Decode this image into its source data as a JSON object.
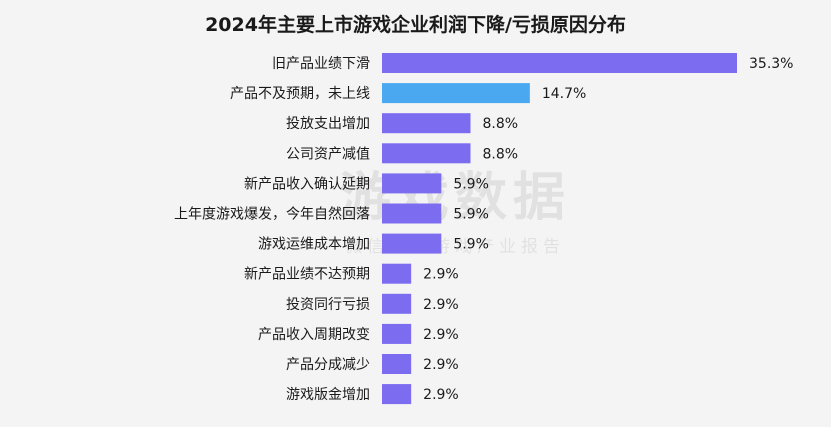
{
  "chart_data": {
    "type": "bar",
    "orientation": "horizontal",
    "title": "2024年主要上市游戏企业利润下降/亏损原因分布",
    "categories": [
      "旧产品业绩下滑",
      "产品不及预期，未上线",
      "投放支出增加",
      "公司资产减值",
      "新产品收入确认延期",
      "上年度游戏爆发，今年自然回落",
      "游戏运维成本增加",
      "新产品业绩不达预期",
      "投资同行亏损",
      "产品收入周期改变",
      "产品分成减少",
      "游戏版金增加"
    ],
    "values": [
      35.3,
      14.7,
      8.8,
      8.8,
      5.9,
      5.9,
      5.9,
      2.9,
      2.9,
      2.9,
      2.9,
      2.9
    ],
    "value_labels": [
      "35.3%",
      "14.7%",
      "8.8%",
      "8.8%",
      "5.9%",
      "5.9%",
      "5.9%",
      "2.9%",
      "2.9%",
      "2.9%",
      "2.9%",
      "2.9%"
    ],
    "highlight_index": 1,
    "colors": {
      "bar": "#7b6cf0",
      "highlight": "#49a8f0"
    },
    "xlim": [
      0,
      35.3
    ],
    "grid": false,
    "legend": "none"
  },
  "watermark": {
    "main": "游戏数据",
    "sub": "微信号：游戏产业报告"
  }
}
